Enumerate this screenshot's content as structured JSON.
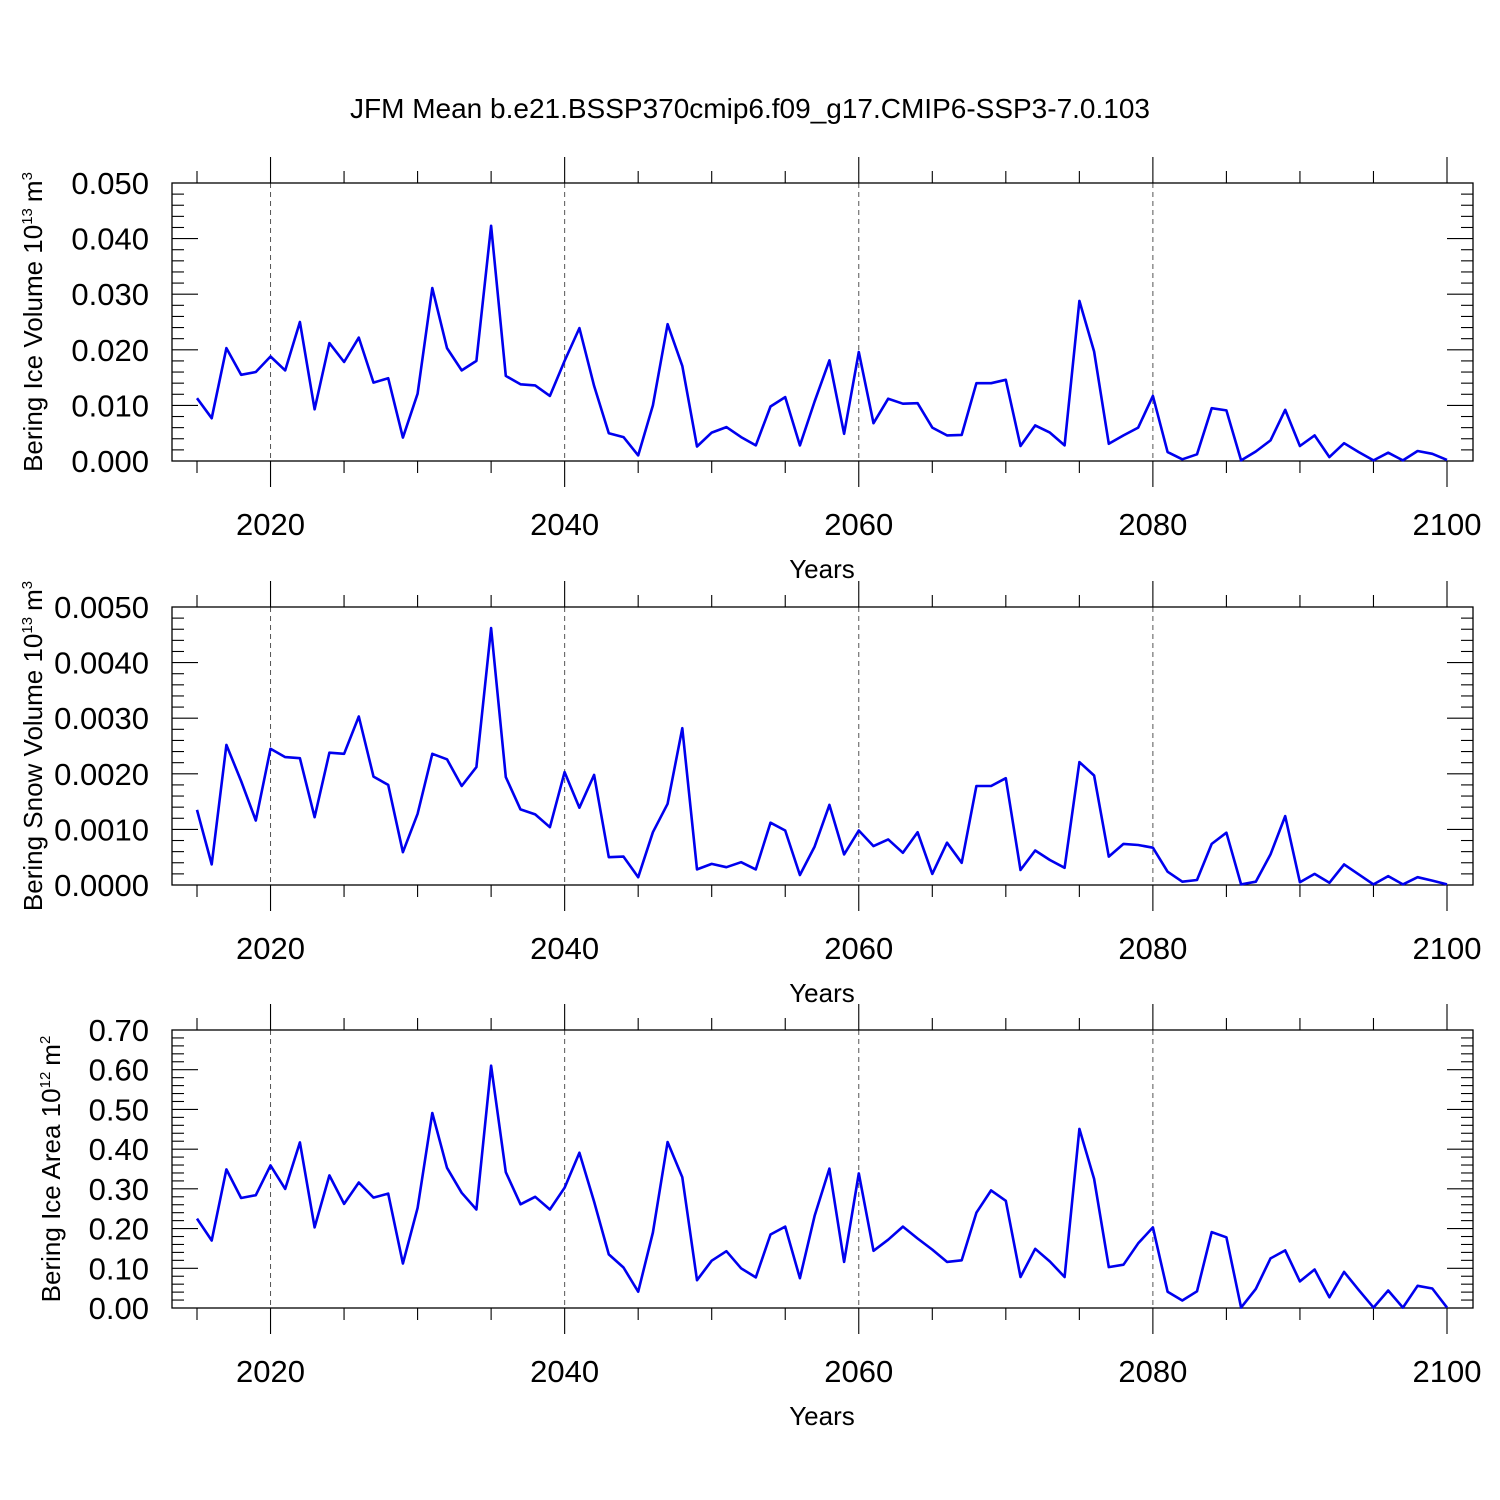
{
  "figure_title": "JFM Mean b.e21.BSSP370cmip6.f09_g17.CMIP6-SSP3-7.0.103",
  "chart_data": [
    {
      "type": "line",
      "title": "JFM Mean b.e21.BSSP370cmip6.f09_g17.CMIP6-SSP3-7.0.103",
      "ylabel": "Bering Ice Volume 10^13 m^3",
      "ylabel_main": "Bering Ice Volume 10",
      "ylabel_exp": "13",
      "ylabel_unit": "m",
      "ylabel_unit_exp": "3",
      "xlabel": "Years",
      "xlim": [
        2015,
        2100
      ],
      "ylim": [
        0,
        0.05
      ],
      "x_ticks": [
        "2020",
        "2040",
        "2060",
        "2080",
        "2100"
      ],
      "y_ticks": [
        "0.000",
        "0.010",
        "0.020",
        "0.030",
        "0.040",
        "0.050"
      ],
      "grid": "vertical dashed at major x ticks",
      "series_color": "#0000ee",
      "x_start": 2015,
      "values": [
        0.0113,
        0.0077,
        0.0203,
        0.0155,
        0.016,
        0.0188,
        0.0163,
        0.025,
        0.0093,
        0.0212,
        0.0178,
        0.0222,
        0.0141,
        0.0149,
        0.0042,
        0.0121,
        0.0311,
        0.0203,
        0.0163,
        0.018,
        0.0423,
        0.0153,
        0.0138,
        0.0136,
        0.0117,
        0.018,
        0.0239,
        0.0135,
        0.005,
        0.0043,
        0.001,
        0.01,
        0.0246,
        0.0171,
        0.0026,
        0.0051,
        0.0061,
        0.0043,
        0.0028,
        0.0098,
        0.0115,
        0.0028,
        0.0107,
        0.0181,
        0.0049,
        0.0196,
        0.0068,
        0.0112,
        0.0103,
        0.0104,
        0.006,
        0.0046,
        0.0047,
        0.014,
        0.014,
        0.0146,
        0.0027,
        0.0064,
        0.0051,
        0.0028,
        0.0288,
        0.0197,
        0.0031,
        0.0046,
        0.006,
        0.0117,
        0.0016,
        0.0003,
        0.0012,
        0.0095,
        0.0091,
        0.0001,
        0.0017,
        0.0037,
        0.0092,
        0.0027,
        0.0046,
        0.0007,
        0.0032,
        0.0016,
        0.0001,
        0.0015,
        0.0001,
        0.0018,
        0.0013,
        0.0002
      ]
    },
    {
      "type": "line",
      "ylabel": "Bering Snow Volume 10^13 m^3",
      "ylabel_main": "Bering Snow Volume 10",
      "ylabel_exp": "13",
      "ylabel_unit": "m",
      "ylabel_unit_exp": "3",
      "xlabel": "Years",
      "xlim": [
        2015,
        2100
      ],
      "ylim": [
        0,
        0.005
      ],
      "x_ticks": [
        "2020",
        "2040",
        "2060",
        "2080",
        "2100"
      ],
      "y_ticks": [
        "0.0000",
        "0.0010",
        "0.0020",
        "0.0030",
        "0.0040",
        "0.0050"
      ],
      "grid": "vertical dashed at major x ticks",
      "series_color": "#0000ee",
      "x_start": 2015,
      "values": [
        0.00135,
        0.00037,
        0.00252,
        0.00187,
        0.00116,
        0.00245,
        0.0023,
        0.00228,
        0.00122,
        0.00238,
        0.00236,
        0.00303,
        0.00195,
        0.0018,
        0.00059,
        0.00128,
        0.00236,
        0.00226,
        0.00178,
        0.00212,
        0.00462,
        0.00194,
        0.00136,
        0.00127,
        0.00104,
        0.00203,
        0.00139,
        0.00198,
        0.0005,
        0.00051,
        0.00014,
        0.00095,
        0.00146,
        0.00282,
        0.00028,
        0.00038,
        0.00032,
        0.00041,
        0.00028,
        0.00112,
        0.00098,
        0.00018,
        0.00069,
        0.00144,
        0.00055,
        0.00098,
        0.0007,
        0.00082,
        0.00058,
        0.00095,
        0.0002,
        0.00076,
        0.0004,
        0.00178,
        0.00178,
        0.00192,
        0.00027,
        0.00062,
        0.00045,
        0.00031,
        0.00221,
        0.00197,
        0.00051,
        0.00074,
        0.00072,
        0.00067,
        0.00024,
        6e-05,
        9e-05,
        0.00074,
        0.00094,
        1e-05,
        6e-05,
        0.00055,
        0.00124,
        5e-05,
        0.0002,
        4e-05,
        0.00037,
        0.00019,
        1e-05,
        0.00016,
        1e-05,
        0.00014,
        8e-05,
        1e-05
      ]
    },
    {
      "type": "line",
      "ylabel": "Bering Ice Area 10^12 m^2",
      "ylabel_main": "Bering Ice Area 10",
      "ylabel_exp": "12",
      "ylabel_unit": "m",
      "ylabel_unit_exp": "2",
      "xlabel": "Years",
      "xlim": [
        2015,
        2100
      ],
      "ylim": [
        0,
        0.7
      ],
      "x_ticks": [
        "2020",
        "2040",
        "2060",
        "2080",
        "2100"
      ],
      "y_ticks": [
        "0.00",
        "0.10",
        "0.20",
        "0.30",
        "0.40",
        "0.50",
        "0.60",
        "0.70"
      ],
      "grid": "vertical dashed at major x ticks",
      "series_color": "#0000ee",
      "x_start": 2015,
      "values": [
        0.225,
        0.17,
        0.349,
        0.277,
        0.284,
        0.359,
        0.3,
        0.417,
        0.203,
        0.334,
        0.262,
        0.316,
        0.278,
        0.288,
        0.112,
        0.252,
        0.491,
        0.353,
        0.29,
        0.248,
        0.61,
        0.342,
        0.261,
        0.28,
        0.248,
        0.303,
        0.391,
        0.268,
        0.135,
        0.102,
        0.041,
        0.19,
        0.418,
        0.329,
        0.07,
        0.119,
        0.143,
        0.1,
        0.077,
        0.185,
        0.205,
        0.075,
        0.232,
        0.351,
        0.116,
        0.339,
        0.144,
        0.172,
        0.205,
        0.175,
        0.147,
        0.116,
        0.12,
        0.24,
        0.296,
        0.27,
        0.078,
        0.149,
        0.117,
        0.078,
        0.451,
        0.325,
        0.103,
        0.109,
        0.163,
        0.203,
        0.041,
        0.019,
        0.042,
        0.191,
        0.178,
        0.001,
        0.048,
        0.125,
        0.145,
        0.067,
        0.097,
        0.027,
        0.091,
        0.045,
        0.001,
        0.044,
        0.001,
        0.056,
        0.049,
        0.001
      ]
    }
  ]
}
